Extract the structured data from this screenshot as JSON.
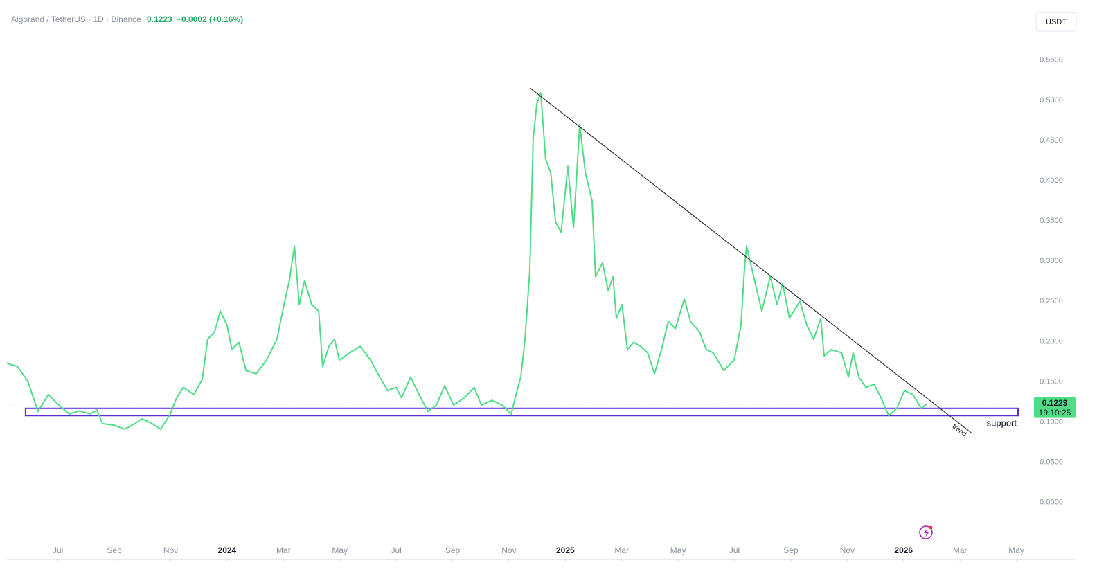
{
  "chart_data": {
    "type": "line",
    "title": "Algorand / TetherUS · 1D · Binance",
    "last_price": 0.1223,
    "change": "+0.0002 (+0.16%)",
    "currency": "USDT",
    "countdown": "19:10:25",
    "color": "#4fdc86",
    "x": [
      -0.81,
      -0.44,
      -0.07,
      0.29,
      0.66,
      1.03,
      1.4,
      1.77,
      2.14,
      2.38,
      2.58,
      3.0,
      3.37,
      3.73,
      3.98,
      4.35,
      4.64,
      4.96,
      5.21,
      5.45,
      5.82,
      6.12,
      6.31,
      6.56,
      6.76,
      7.0,
      7.17,
      7.42,
      7.67,
      8.03,
      8.4,
      8.77,
      9.02,
      9.21,
      9.39,
      9.56,
      9.75,
      10.0,
      10.25,
      10.39,
      10.61,
      10.81,
      10.98,
      11.35,
      11.72,
      12.09,
      12.41,
      12.7,
      13.0,
      13.19,
      13.51,
      13.81,
      14.13,
      14.42,
      14.72,
      15.04,
      15.41,
      15.77,
      16.02,
      16.39,
      16.76,
      17.08,
      17.25,
      17.42,
      17.57,
      17.74,
      17.86,
      17.99,
      18.13,
      18.3,
      18.48,
      18.65,
      18.85,
      19.09,
      19.29,
      19.51,
      19.71,
      19.95,
      20.07,
      20.32,
      20.52,
      20.69,
      20.81,
      21.01,
      21.2,
      21.42,
      21.67,
      21.92,
      22.16,
      22.41,
      22.65,
      22.9,
      23.22,
      23.44,
      23.76,
      24.0,
      24.25,
      24.62,
      24.99,
      25.23,
      25.36,
      25.43,
      25.68,
      25.97,
      26.27,
      26.51,
      26.71,
      26.95,
      27.32,
      27.57,
      27.81,
      28.06,
      28.18,
      28.43,
      28.8,
      29.04,
      29.21,
      29.41,
      29.66,
      29.95,
      30.2,
      30.47,
      30.76,
      31.03,
      31.33,
      31.62,
      31.82
    ],
    "values": [
      0.173,
      0.169,
      0.151,
      0.113,
      0.134,
      0.121,
      0.11,
      0.114,
      0.11,
      0.115,
      0.098,
      0.096,
      0.091,
      0.098,
      0.104,
      0.098,
      0.091,
      0.108,
      0.13,
      0.143,
      0.134,
      0.153,
      0.203,
      0.212,
      0.238,
      0.22,
      0.19,
      0.199,
      0.164,
      0.16,
      0.177,
      0.203,
      0.246,
      0.276,
      0.319,
      0.246,
      0.276,
      0.246,
      0.238,
      0.169,
      0.194,
      0.203,
      0.177,
      0.186,
      0.194,
      0.177,
      0.156,
      0.139,
      0.143,
      0.13,
      0.156,
      0.134,
      0.113,
      0.121,
      0.145,
      0.121,
      0.13,
      0.143,
      0.121,
      0.127,
      0.121,
      0.11,
      0.134,
      0.156,
      0.203,
      0.289,
      0.453,
      0.496,
      0.509,
      0.427,
      0.41,
      0.349,
      0.336,
      0.418,
      0.341,
      0.47,
      0.41,
      0.375,
      0.281,
      0.298,
      0.263,
      0.281,
      0.229,
      0.246,
      0.19,
      0.199,
      0.194,
      0.186,
      0.16,
      0.19,
      0.225,
      0.216,
      0.253,
      0.225,
      0.212,
      0.19,
      0.186,
      0.164,
      0.177,
      0.22,
      0.293,
      0.319,
      0.281,
      0.238,
      0.281,
      0.246,
      0.272,
      0.229,
      0.25,
      0.22,
      0.203,
      0.229,
      0.182,
      0.19,
      0.186,
      0.156,
      0.186,
      0.156,
      0.143,
      0.147,
      0.13,
      0.108,
      0.117,
      0.139,
      0.134,
      0.117,
      0.1223
    ],
    "xlim": [
      -0.81,
      35.6
    ],
    "xticks": [
      {
        "value": 1,
        "label": "Jul"
      },
      {
        "value": 3,
        "label": "Sep"
      },
      {
        "value": 5,
        "label": "Nov"
      },
      {
        "value": 7,
        "label": "2024"
      },
      {
        "value": 9,
        "label": "Mar"
      },
      {
        "value": 11,
        "label": "May"
      },
      {
        "value": 13,
        "label": "Jul"
      },
      {
        "value": 15,
        "label": "Sep"
      },
      {
        "value": 17,
        "label": "Nov"
      },
      {
        "value": 19,
        "label": "2025"
      },
      {
        "value": 21,
        "label": "Mar"
      },
      {
        "value": 23,
        "label": "May"
      },
      {
        "value": 25,
        "label": "Jul"
      },
      {
        "value": 27,
        "label": "Sep"
      },
      {
        "value": 29,
        "label": "Nov"
      },
      {
        "value": 31,
        "label": "2026"
      },
      {
        "value": 33,
        "label": "Mar"
      },
      {
        "value": 35,
        "label": "May"
      }
    ],
    "ylim": [
      -0.07,
      0.586
    ],
    "yticks": [
      {
        "value": 0,
        "label": "0.0000"
      },
      {
        "value": 0.05,
        "label": "0.0500"
      },
      {
        "value": 0.1,
        "label": "0.1000"
      },
      {
        "value": 0.15,
        "label": "0.1500"
      },
      {
        "value": 0.2,
        "label": "0.2000"
      },
      {
        "value": 0.25,
        "label": "0.2500"
      },
      {
        "value": 0.3,
        "label": "0.3000"
      },
      {
        "value": 0.35,
        "label": "0.3500"
      },
      {
        "value": 0.4,
        "label": "0.4000"
      },
      {
        "value": 0.45,
        "label": "0.4500"
      },
      {
        "value": 0.5,
        "label": "0.5000"
      },
      {
        "value": 0.55,
        "label": "0.5500"
      }
    ],
    "trend_line": {
      "label": "trend",
      "x": [
        17.76,
        33.42
      ],
      "y": [
        0.515,
        0.086
      ]
    },
    "support_zone": {
      "label": "support",
      "x": [
        -0.15,
        35.06
      ],
      "y": [
        0.108,
        0.117
      ]
    }
  }
}
